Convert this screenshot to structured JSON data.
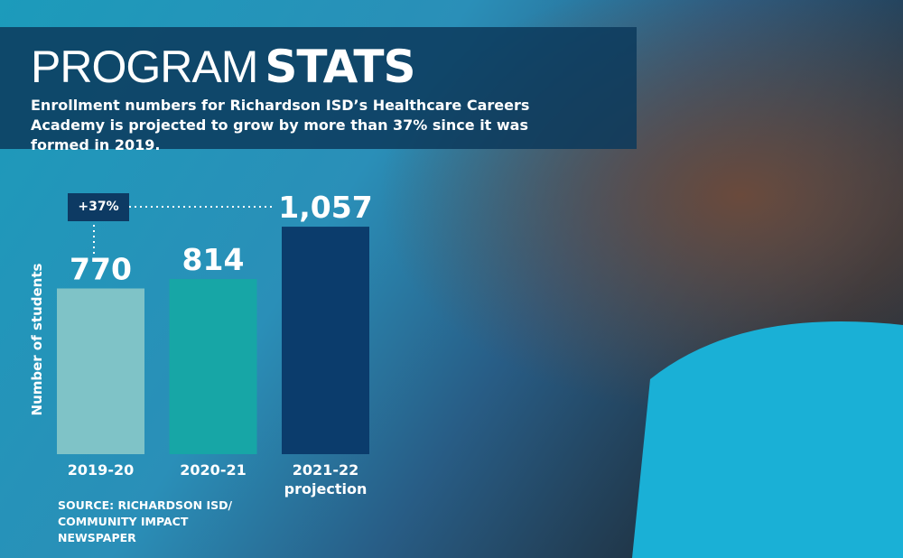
{
  "chart_data": {
    "type": "bar",
    "title_light": "PROGRAM",
    "title_bold": "STATS",
    "subtitle": "Enrollment numbers for Richardson ISD’s Healthcare Careers Academy is projected to grow by more than 37% since it was formed in 2019.",
    "y_label": "Number of students",
    "annotation": "+37%",
    "source": "SOURCE: RICHARDSON ISD/ COMMUNITY IMPACT NEWSPAPER",
    "categories": [
      "2019-20",
      "2020-21",
      "2021-22 projection"
    ],
    "values": [
      770,
      814,
      1057
    ],
    "value_labels": [
      "770",
      "814",
      "1,057"
    ],
    "colors": [
      "#7fc3c7",
      "#17a6a6",
      "#0b3c6c"
    ],
    "ylim": [
      0,
      1200
    ]
  }
}
